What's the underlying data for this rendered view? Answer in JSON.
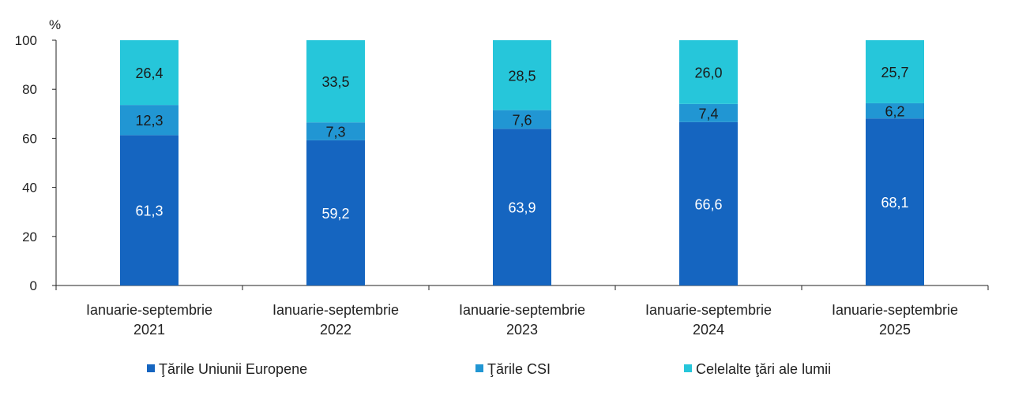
{
  "chart_data": {
    "type": "bar",
    "stacked": true,
    "ylabel": "%",
    "ylim": [
      0,
      100
    ],
    "yticks": [
      "0",
      "20",
      "40",
      "60",
      "80",
      "100"
    ],
    "categories": [
      [
        "Ianuarie-septembrie",
        "2021"
      ],
      [
        "Ianuarie-septembrie",
        "2022"
      ],
      [
        "Ianuarie-septembrie",
        "2023"
      ],
      [
        "Ianuarie-septembrie",
        "2024"
      ],
      [
        "Ianuarie-septembrie",
        "2025"
      ]
    ],
    "series": [
      {
        "name": "Ţările Uniunii Europene",
        "color": "#1565C0",
        "label_color": "#ffffff",
        "values": [
          61.3,
          59.2,
          63.9,
          66.6,
          68.1
        ],
        "labels": [
          "61,3",
          "59,2",
          "63,9",
          "66,6",
          "68,1"
        ]
      },
      {
        "name": "Ţările CSI",
        "color": "#2196D3",
        "label_color": "#1a1a1a",
        "values": [
          12.3,
          7.3,
          7.6,
          7.4,
          6.2
        ],
        "labels": [
          "12,3",
          "7,3",
          "7,6",
          "7,4",
          "6,2"
        ]
      },
      {
        "name": "Celelalte ţări ale lumii",
        "color": "#26C6DA",
        "label_color": "#1a1a1a",
        "values": [
          26.4,
          33.5,
          28.5,
          26.0,
          25.7
        ],
        "labels": [
          "26,4",
          "33,5",
          "28,5",
          "26,0",
          "25,7"
        ]
      }
    ],
    "grid": false,
    "legend_position": "bottom"
  }
}
